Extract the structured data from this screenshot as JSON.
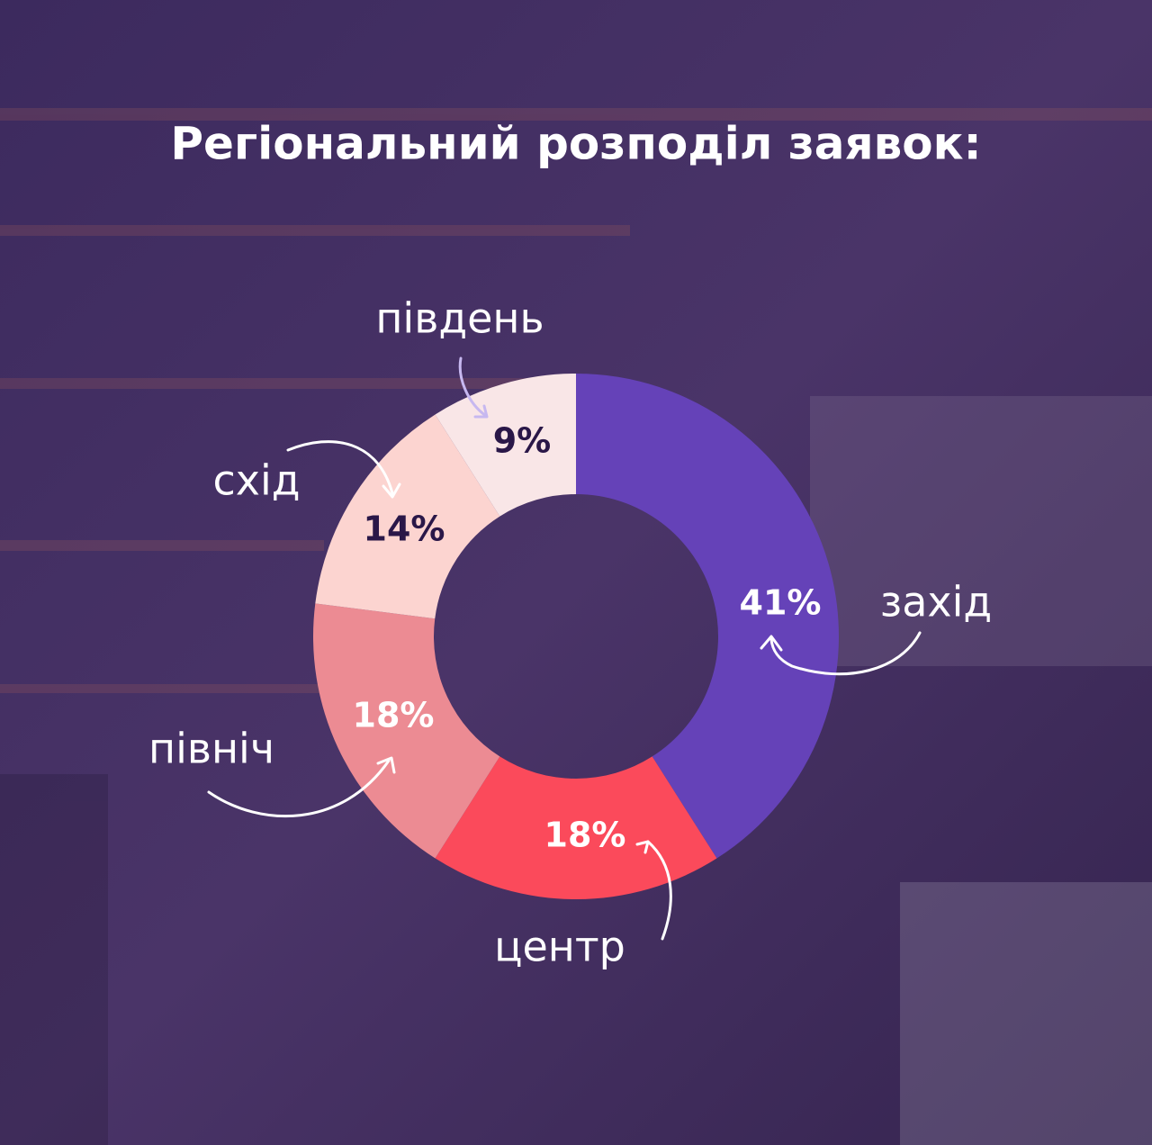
{
  "chart_data": {
    "type": "donut",
    "title": "Регіональний розподіл заявок:",
    "categories": [
      "захід",
      "центр",
      "північ",
      "схід",
      "південь"
    ],
    "values": [
      41,
      18,
      18,
      14,
      9
    ],
    "value_labels": [
      "41%",
      "18%",
      "18%",
      "14%",
      "9%"
    ],
    "colors": [
      "#6542b8",
      "#fb4a5b",
      "#ec8b93",
      "#fcd4d0",
      "#f9e6e7"
    ]
  }
}
